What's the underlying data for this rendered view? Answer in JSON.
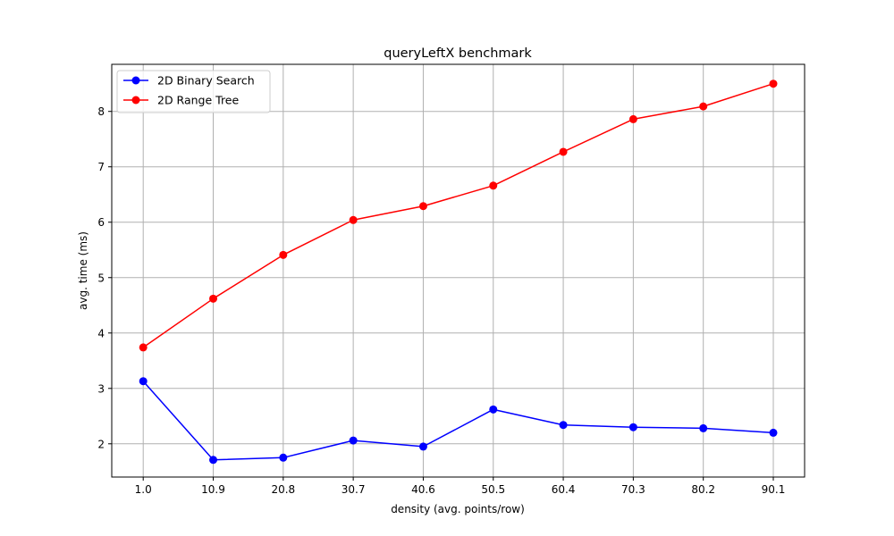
{
  "chart_data": {
    "type": "line",
    "title": "queryLeftX benchmark",
    "xlabel": "density (avg. points/row)",
    "ylabel": "avg. time (ms)",
    "categories": [
      "1.0",
      "10.9",
      "20.8",
      "30.7",
      "40.6",
      "50.5",
      "60.4",
      "70.3",
      "80.2",
      "90.1"
    ],
    "ylim": [
      1.4,
      8.85
    ],
    "yticks": [
      2,
      3,
      4,
      5,
      6,
      7,
      8
    ],
    "grid": true,
    "legend_position": "top-left",
    "series": [
      {
        "name": "2D Binary Search",
        "color": "#0000ff",
        "marker": "circle",
        "values": [
          3.13,
          1.71,
          1.75,
          2.06,
          1.95,
          2.62,
          2.34,
          2.3,
          2.28,
          2.2
        ]
      },
      {
        "name": "2D Range Tree",
        "color": "#ff0000",
        "marker": "circle",
        "values": [
          3.74,
          4.62,
          5.41,
          6.04,
          6.29,
          6.66,
          7.27,
          7.86,
          8.09,
          8.5
        ]
      }
    ]
  }
}
